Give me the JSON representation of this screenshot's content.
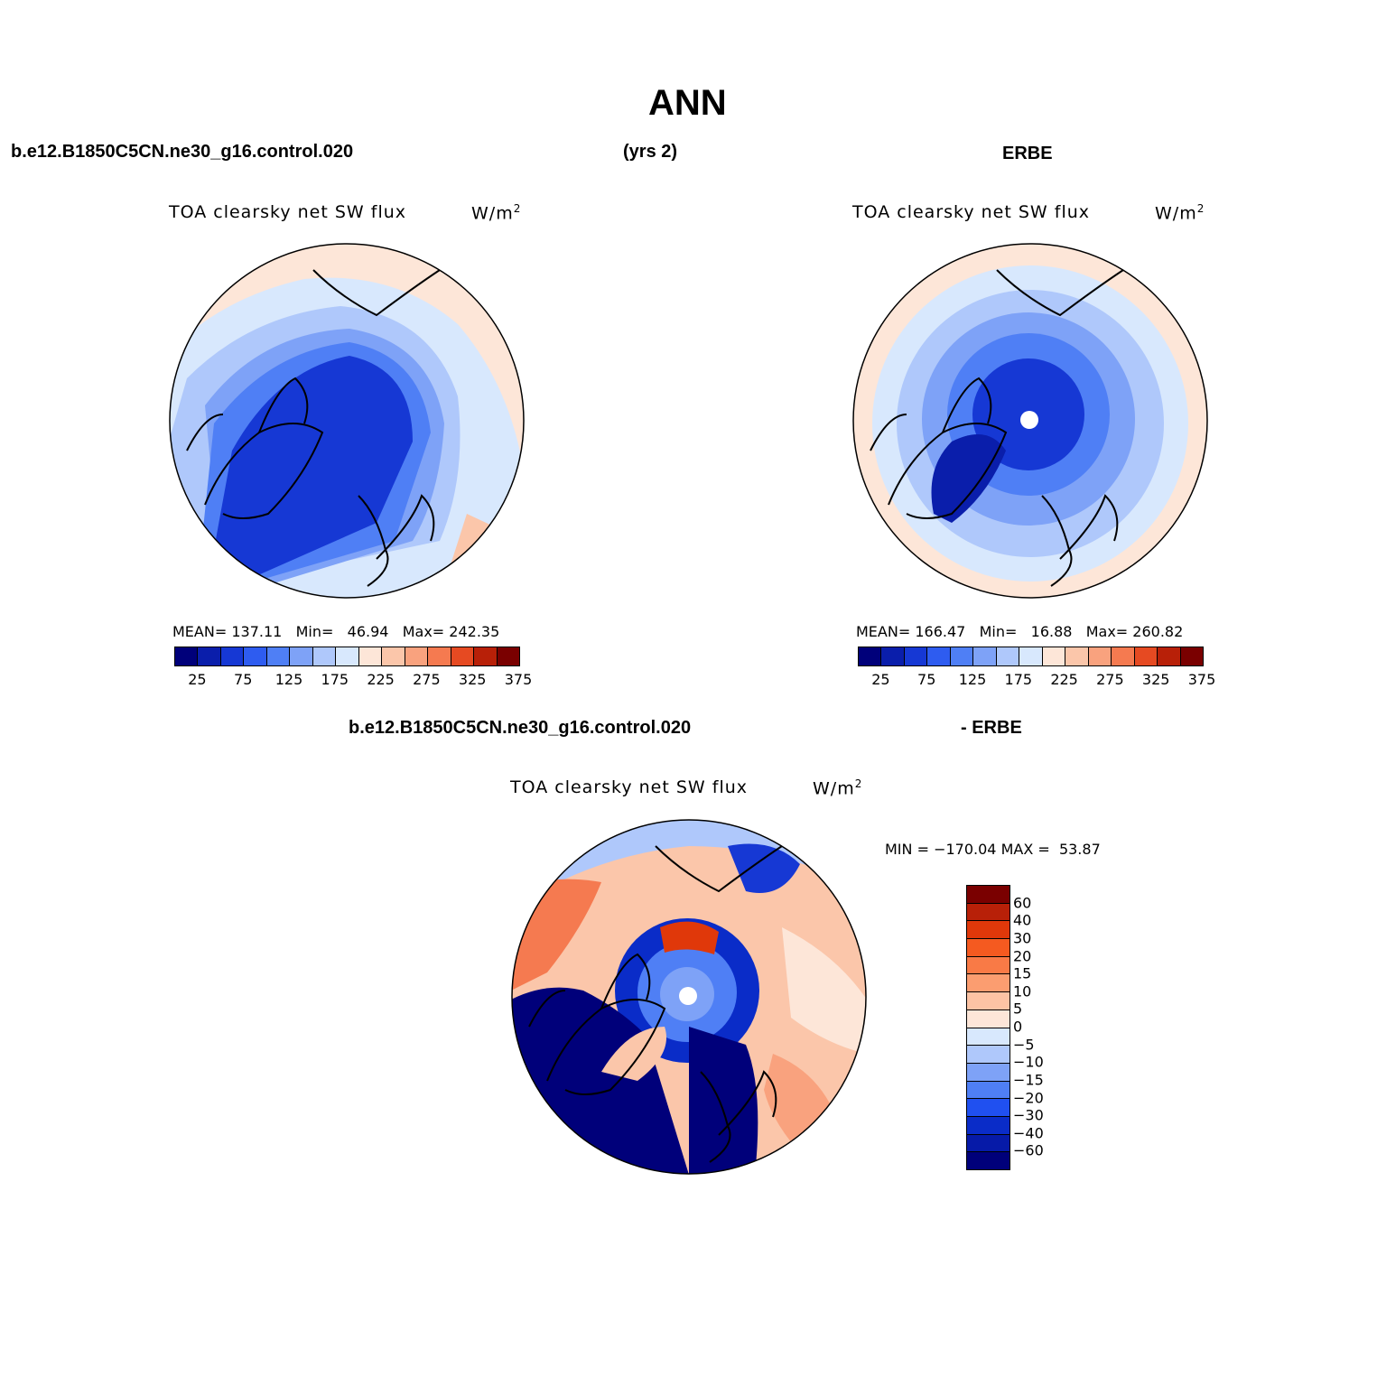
{
  "figure": {
    "title": "ANN",
    "case_label": "b.e12.B1850C5CN.ne30_g16.control.020",
    "years_label": "(yrs 2)",
    "obs_label": "ERBE",
    "diff_case_label": "b.e12.B1850C5CN.ne30_g16.control.020",
    "diff_obs_label": "- ERBE"
  },
  "panels": {
    "model": {
      "variable": "TOA clearsky net SW flux",
      "units": "W/m",
      "units_sup": "2",
      "stats": {
        "mean_label": "MEAN=",
        "mean": "137.11",
        "min_label": "Min=",
        "min": "46.94",
        "max_label": "Max=",
        "max": "242.35"
      }
    },
    "obs": {
      "variable": "TOA clearsky net SW flux",
      "units": "W/m",
      "units_sup": "2",
      "stats": {
        "mean_label": "MEAN=",
        "mean": "166.47",
        "min_label": "Min=",
        "min": "16.88",
        "max_label": "Max=",
        "max": "260.82"
      }
    },
    "diff": {
      "variable": "TOA clearsky net SW flux",
      "units": "W/m",
      "units_sup": "2",
      "stats": {
        "min_label": "MIN =",
        "min": "−170.04",
        "max_label": "MAX =",
        "max": "53.87"
      }
    }
  },
  "colorbars": {
    "abs": {
      "colors": [
        "#00007a",
        "#0a1eab",
        "#1638d4",
        "#2e5cf0",
        "#4f7ff5",
        "#7ea2f7",
        "#afc8fb",
        "#d8e8fd",
        "#fde6d8",
        "#fbc6aa",
        "#f9a27e",
        "#f57a50",
        "#e64a22",
        "#b82008",
        "#7a0000"
      ],
      "labels": [
        "25",
        "75",
        "125",
        "175",
        "225",
        "275",
        "325",
        "375"
      ]
    },
    "diff": {
      "colors": [
        "#7a0000",
        "#b82008",
        "#e0380a",
        "#f55a20",
        "#f97a46",
        "#fb9d70",
        "#fcc3a4",
        "#fde6d8",
        "#d8e8fd",
        "#afc8fb",
        "#7ea2f7",
        "#4f7ff5",
        "#2050f0",
        "#0a2cc8",
        "#061aa8",
        "#00007a"
      ],
      "labels": [
        "60",
        "40",
        "30",
        "20",
        "15",
        "10",
        "5",
        "0",
        "−5",
        "−10",
        "−15",
        "−20",
        "−30",
        "−40",
        "−60"
      ]
    }
  },
  "chart_data": [
    {
      "type": "heatmap",
      "title": "TOA clearsky net SW flux (W/m2)",
      "projection": "north polar stereographic",
      "dataset": "b.e12.B1850C5CN.ne30_g16.control.020 (yrs 2)",
      "contour_levels": [
        25,
        50,
        75,
        100,
        125,
        150,
        175,
        200,
        225,
        250,
        275,
        300,
        325,
        350,
        375
      ],
      "mean": 137.11,
      "min": 46.94,
      "max": 242.35
    },
    {
      "type": "heatmap",
      "title": "TOA clearsky net SW flux (W/m2)",
      "projection": "north polar stereographic",
      "dataset": "ERBE",
      "contour_levels": [
        25,
        50,
        75,
        100,
        125,
        150,
        175,
        200,
        225,
        250,
        275,
        300,
        325,
        350,
        375
      ],
      "mean": 166.47,
      "min": 16.88,
      "max": 260.82
    },
    {
      "type": "heatmap",
      "title": "TOA clearsky net SW flux (W/m2)",
      "projection": "north polar stereographic",
      "dataset": "model - ERBE",
      "contour_levels": [
        -60,
        -40,
        -30,
        -20,
        -15,
        -10,
        -5,
        0,
        5,
        10,
        15,
        20,
        30,
        40,
        60
      ],
      "min": -170.04,
      "max": 53.87
    }
  ]
}
